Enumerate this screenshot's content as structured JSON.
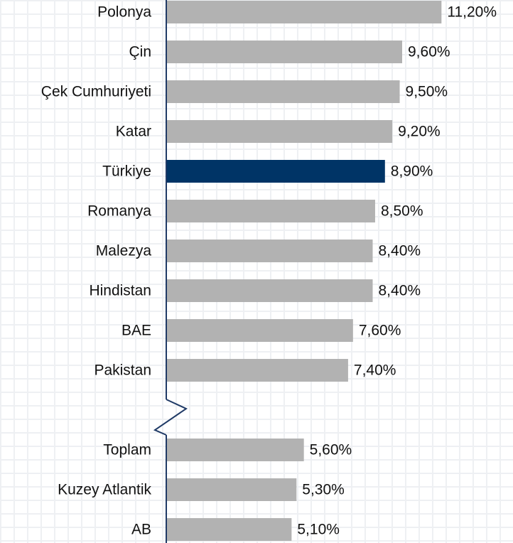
{
  "chart_data": {
    "type": "hbar",
    "categories": [
      "Polonya",
      "Çin",
      "Çek Cumhuriyeti",
      "Katar",
      "Türkiye",
      "Romanya",
      "Malezya",
      "Hindistan",
      "BAE",
      "Pakistan",
      null,
      "Toplam",
      "Kuzey Atlantik",
      "AB"
    ],
    "values": [
      11.2,
      9.6,
      9.5,
      9.2,
      8.9,
      8.5,
      8.4,
      8.4,
      7.6,
      7.4,
      null,
      5.6,
      5.3,
      5.1
    ],
    "value_labels": [
      "11,20%",
      "9,60%",
      "9,50%",
      "9,20%",
      "8,90%",
      "8,50%",
      "8,40%",
      "8,40%",
      "7,60%",
      "7,40%",
      null,
      "5,60%",
      "5,30%",
      "5,10%"
    ],
    "colors": [
      "#b2b2b2",
      "#b2b2b2",
      "#b2b2b2",
      "#b2b2b2",
      "#003466",
      "#b2b2b2",
      "#b2b2b2",
      "#b2b2b2",
      "#b2b2b2",
      "#b2b2b2",
      null,
      "#b2b2b2",
      "#b2b2b2",
      "#b2b2b2"
    ],
    "xlim": [
      0,
      12
    ]
  }
}
